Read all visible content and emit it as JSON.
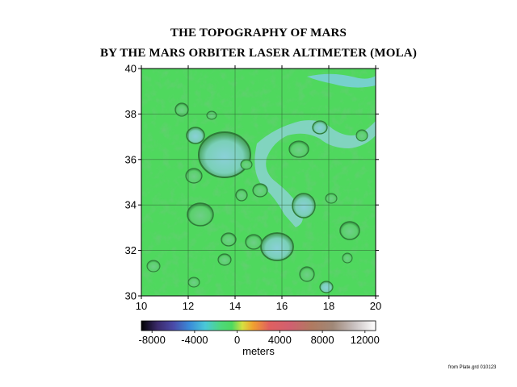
{
  "title": {
    "line1": "THE TOPOGRAPHY OF MARS",
    "line2": "BY THE MARS ORBITER LASER ALTIMETER (MOLA)"
  },
  "map": {
    "x_ticks": [
      "10",
      "12",
      "14",
      "16",
      "18",
      "20"
    ],
    "y_ticks": [
      "30",
      "32",
      "34",
      "36",
      "38",
      "40"
    ],
    "x_range": [
      10,
      20
    ],
    "y_range": [
      30,
      40
    ],
    "grid": true,
    "surface_colors": {
      "base": "#4fd85e",
      "low": "#7ad8c8",
      "deep": "#5ab8d8",
      "shadow": "#3a8a44",
      "highlight": "#c8f0b8"
    }
  },
  "colorbar": {
    "ticks": [
      "-8000",
      "-4000",
      "0",
      "4000",
      "8000",
      "12000"
    ],
    "tick_values": [
      -8000,
      -4000,
      0,
      4000,
      8000,
      12000
    ],
    "range": [
      -9000,
      13000
    ],
    "label": "meters",
    "stops": [
      {
        "value": -9000,
        "color": "#000000"
      },
      {
        "value": -7500,
        "color": "#3a2a6a"
      },
      {
        "value": -6000,
        "color": "#4a4aa8"
      },
      {
        "value": -4500,
        "color": "#3a8ad8"
      },
      {
        "value": -3000,
        "color": "#4ac8d8"
      },
      {
        "value": -1500,
        "color": "#4ed87a"
      },
      {
        "value": -500,
        "color": "#4ed860"
      },
      {
        "value": 500,
        "color": "#d8e040"
      },
      {
        "value": 1500,
        "color": "#f0a030"
      },
      {
        "value": 3000,
        "color": "#e06060"
      },
      {
        "value": 5000,
        "color": "#d06070"
      },
      {
        "value": 7000,
        "color": "#b07a60"
      },
      {
        "value": 9000,
        "color": "#a08878"
      },
      {
        "value": 11000,
        "color": "#c8c0c0"
      },
      {
        "value": 13000,
        "color": "#ffffff"
      }
    ]
  },
  "credit": "from Plate.grd 010123"
}
